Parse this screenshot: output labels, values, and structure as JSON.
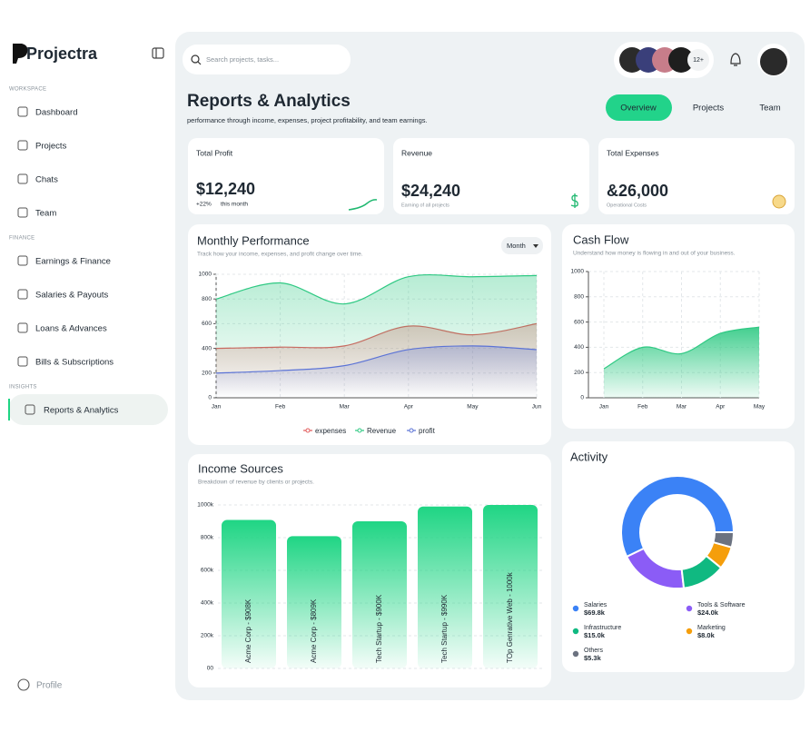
{
  "sidebar": {
    "brand": "Projectra",
    "sections": [
      {
        "title": "WORKSPACE",
        "items": [
          "Dashboard",
          "Projects",
          "Chats",
          "Team"
        ]
      },
      {
        "title": "FINANCE",
        "items": [
          "Earnings & Finance",
          "Salaries & Payouts",
          "Loans & Advances",
          "Bills & Subscriptions"
        ]
      },
      {
        "title": "INSIGHTS",
        "items": [
          "Reports & Analytics"
        ]
      }
    ],
    "profile": "Profile"
  },
  "topbar": {
    "search_placeholder": "Search projects, tasks...",
    "avatars_more": "12+"
  },
  "header": {
    "title": "Reports & Analytics",
    "subtitle": "performance through income, expenses, project profitability, and team earnings.",
    "tabs": [
      "Overview",
      "Projects",
      "Team"
    ]
  },
  "stats": [
    {
      "label": "Total Profit",
      "value": "$12,240",
      "change": "+22%",
      "note": "this month"
    },
    {
      "label": "Revenue",
      "value": "$24,240",
      "note": "Earning of all projects"
    },
    {
      "label": "Total Expenses",
      "value": "&26,000",
      "note": "Operational Costs"
    }
  ],
  "monthly_performance": {
    "type": "line",
    "title": "Monthly Performance",
    "subtitle": "Track how your income, expenses, and profit change over time.",
    "dropdown": "Month",
    "categories": [
      "Jan",
      "Feb",
      "Mar",
      "Apr",
      "May",
      "Jun"
    ],
    "ylim": [
      0,
      1000
    ],
    "yticks": [
      0,
      200,
      400,
      600,
      800,
      1000
    ],
    "grid": true,
    "series": [
      {
        "name": "expenses",
        "color": "#e25b5b",
        "values": [
          400,
          410,
          420,
          580,
          510,
          600
        ]
      },
      {
        "name": "Revenue",
        "color": "#2fc983",
        "values": [
          800,
          930,
          760,
          980,
          980,
          990
        ]
      },
      {
        "name": "profit",
        "color": "#5b73d6",
        "values": [
          200,
          220,
          260,
          390,
          420,
          390
        ]
      }
    ]
  },
  "cash_flow": {
    "type": "area",
    "title": "Cash Flow",
    "subtitle": "Understand how money is flowing in and out of your business.",
    "categories": [
      "Jan",
      "Feb",
      "Mar",
      "Apr",
      "May"
    ],
    "ylim": [
      0,
      1000
    ],
    "yticks": [
      0,
      200,
      400,
      600,
      800,
      1000
    ],
    "grid": true,
    "color": "#2fc983",
    "values": [
      230,
      400,
      350,
      510,
      560
    ]
  },
  "income_sources": {
    "type": "bar",
    "title": "Income Sources",
    "subtitle": "Breakdown of revenue by clients or projects.",
    "categories": [
      "Acme Corp - $908K",
      "Acme Corp - $809K",
      "Tech Startup - $900K",
      "Tech Startup - $990K",
      "TOp Genrative Web - 1000k"
    ],
    "values": [
      908000,
      809000,
      900000,
      990000,
      1000000
    ],
    "ylim": [
      0,
      1000000
    ],
    "yticks": [
      {
        "value": 0,
        "label": "00"
      },
      {
        "value": 200000,
        "label": "200k"
      },
      {
        "value": 400000,
        "label": "400k"
      },
      {
        "value": 600000,
        "label": "600k"
      },
      {
        "value": 800000,
        "label": "800k"
      },
      {
        "value": 1000000,
        "label": "1000k"
      }
    ],
    "color": "#1fd584"
  },
  "activity": {
    "type": "donut",
    "title": "Activity",
    "categories": [
      "Salaries",
      "Tools & Software",
      "Infrastructure",
      "Marketing",
      "Others"
    ],
    "values": [
      69.8,
      24.0,
      15.0,
      8.0,
      5.3
    ],
    "value_labels": [
      "$69.8k",
      "$24.0k",
      "$15.0k",
      "$8.0k",
      "$5.3k"
    ],
    "colors": [
      "#3b82f6",
      "#8b5cf6",
      "#10b981",
      "#f59e0b",
      "#6b7280"
    ]
  }
}
